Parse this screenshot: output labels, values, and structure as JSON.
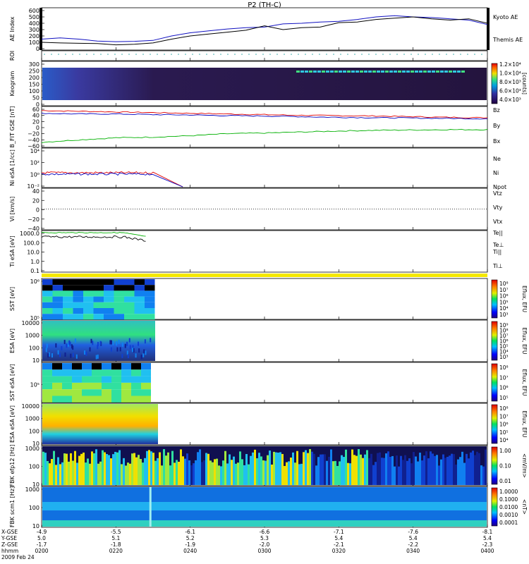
{
  "title": "P2 (TH-C)",
  "footer": {
    "rows": [
      {
        "label": "X-GSE",
        "values": [
          "-4.9",
          "-5.5",
          "-6.1",
          "-6.6",
          "-7.1",
          "-7.6",
          "-8.1"
        ]
      },
      {
        "label": "Y-GSE",
        "values": [
          "5.0",
          "5.1",
          "5.2",
          "5.3",
          "5.4",
          "5.4",
          "5.4"
        ]
      },
      {
        "label": "Z-GSE",
        "values": [
          "-1.7",
          "-1.8",
          "-1.9",
          "-2.0",
          "-2.1",
          "-2.2",
          "-2.3"
        ]
      },
      {
        "label": "hhmm",
        "values": [
          "0200",
          "0220",
          "0240",
          "0300",
          "0320",
          "0340",
          "0400"
        ]
      }
    ],
    "date": "2009 Feb 24"
  },
  "colors": {
    "kyoto": "#1010c0",
    "themis": "#000000",
    "bz": "#e00000",
    "by": "#00b000",
    "bx": "#0000c0",
    "roi": "#f5e800"
  },
  "chart_data": [
    {
      "type": "line",
      "name": "AE Index",
      "ylabel": "AE Index",
      "yticks": [
        "600",
        "500",
        "400",
        "300",
        "200",
        "100",
        "0"
      ],
      "ylim": [
        0,
        600
      ],
      "xlim_min": [
        0,
        120
      ],
      "series": [
        {
          "name": "Kyoto AE",
          "x": [
            0,
            5,
            10,
            15,
            20,
            25,
            30,
            35,
            40,
            45,
            50,
            55,
            60,
            65,
            70,
            75,
            80,
            85,
            90,
            95,
            100,
            105,
            110,
            115,
            120
          ],
          "values": [
            150,
            170,
            150,
            120,
            110,
            115,
            130,
            200,
            250,
            280,
            310,
            330,
            340,
            390,
            400,
            420,
            430,
            460,
            500,
            520,
            500,
            490,
            470,
            450,
            380
          ]
        },
        {
          "name": "Themis AE",
          "x": [
            0,
            5,
            10,
            15,
            20,
            25,
            30,
            35,
            40,
            45,
            50,
            55,
            60,
            65,
            70,
            75,
            80,
            85,
            90,
            95,
            100,
            105,
            110,
            115,
            120
          ],
          "values": [
            100,
            90,
            85,
            80,
            60,
            70,
            90,
            150,
            200,
            230,
            260,
            290,
            360,
            300,
            330,
            340,
            410,
            420,
            460,
            480,
            500,
            470,
            450,
            470,
            400
          ]
        }
      ]
    },
    {
      "type": "line",
      "name": "ROI",
      "ylabel": "ROI",
      "yticks": []
    },
    {
      "type": "heatmap",
      "name": "Keogram",
      "ylabel": "Keogram",
      "yticks": [
        "300",
        "250",
        "200",
        "150",
        "100",
        "50",
        "0"
      ],
      "colorbar": {
        "label": "[counts]",
        "ticks": [
          "1.2×10⁴",
          "1.0×10⁴",
          "8.0×10³",
          "6.0×10³",
          "4.0×10³"
        ]
      }
    },
    {
      "type": "line",
      "name": "B FIT GSE",
      "ylabel": "B_FIT GSE [nT]",
      "yticks": [
        "60",
        "40",
        "20",
        "0",
        "−20",
        "−40",
        "−60"
      ],
      "ylim": [
        -60,
        60
      ],
      "series": [
        {
          "name": "Bz",
          "x": [
            0,
            10,
            20,
            30,
            40,
            50,
            60,
            70,
            80,
            90,
            100,
            110,
            120
          ],
          "values": [
            48,
            46,
            44,
            42,
            40,
            38,
            36,
            34,
            33,
            32,
            30,
            28,
            27
          ]
        },
        {
          "name": "By",
          "x": [
            0,
            10,
            20,
            30,
            40,
            50,
            60,
            70,
            80,
            90,
            100,
            110,
            120
          ],
          "values": [
            -45,
            -38,
            -32,
            -30,
            -26,
            -20,
            -18,
            -15,
            -12,
            -10,
            -9,
            -8,
            -8
          ]
        },
        {
          "name": "Bx",
          "x": [
            0,
            10,
            20,
            30,
            40,
            50,
            60,
            70,
            80,
            90,
            100,
            110,
            120
          ],
          "values": [
            40,
            38,
            38,
            36,
            35,
            33,
            32,
            30,
            28,
            27,
            26,
            25,
            24
          ]
        }
      ]
    },
    {
      "type": "line",
      "name": "Ni",
      "ylabel": "Ni eSA [1/cc]",
      "yticks": [
        "10⁴",
        "10²",
        "10⁰",
        "10⁻²"
      ],
      "legend": [
        "Ne",
        "Ni",
        "Npot"
      ],
      "legend_colors": [
        "#e00000",
        "#000000",
        "#0000c0"
      ]
    },
    {
      "type": "line",
      "name": "Vi",
      "ylabel": "Vi [km/s]",
      "yticks": [
        "40",
        "20",
        "0",
        "−20",
        "−40"
      ],
      "legend": [
        "Vtz",
        "Vty",
        "Vtx"
      ],
      "legend_colors": [
        "#e00000",
        "#00b000",
        "#0000c0"
      ]
    },
    {
      "type": "line",
      "name": "Ti",
      "ylabel": "Ti eSA [eV]",
      "yticks": [
        "1000.0",
        "100.0",
        "10.0",
        "1.0",
        "0.1"
      ],
      "legend": [
        "Te||",
        "Te⊥",
        "Ti||",
        "Ti⊥"
      ],
      "legend_colors": [
        "#000000",
        "#e00000",
        "#00b000",
        "#0000c0"
      ]
    },
    {
      "type": "heatmap",
      "name": "SST1",
      "ylabel": "SST [eV]",
      "yticks": [
        "10⁶",
        "10⁵"
      ],
      "colorbar": {
        "label": "Eflux, EFU",
        "ticks": [
          "10⁸",
          "10⁷",
          "10⁶",
          "10⁵",
          "10⁴",
          "10³"
        ]
      }
    },
    {
      "type": "heatmap",
      "name": "ESA1",
      "ylabel": "ESA [eV]",
      "yticks": [
        "10000",
        "1000",
        "100",
        "10"
      ],
      "colorbar": {
        "label": "Eflux, EFU",
        "ticks": [
          "10⁹",
          "10⁸",
          "10⁷",
          "10⁶",
          "10⁵",
          "10⁴",
          "10³"
        ]
      }
    },
    {
      "type": "heatmap",
      "name": "SST2",
      "ylabel": "SST eSA [eV]",
      "yticks": [
        "10⁵"
      ],
      "colorbar": {
        "label": "Eflux, EFU",
        "ticks": [
          "10⁸",
          "10⁷",
          "10⁶",
          "10⁵"
        ]
      }
    },
    {
      "type": "heatmap",
      "name": "ESA2",
      "ylabel": "ESA eSA [eV]",
      "yticks": [
        "10000",
        "1000",
        "100",
        "10"
      ],
      "colorbar": {
        "label": "Eflux, EFU",
        "ticks": [
          "10⁸",
          "10⁷",
          "10⁶",
          "10⁵",
          "10⁴"
        ]
      }
    },
    {
      "type": "heatmap",
      "name": "FBK1",
      "ylabel": "FBK efp12 [Hz]",
      "yticks": [
        "1000",
        "100",
        "10"
      ],
      "colorbar": {
        "label": "<mV/m>",
        "ticks": [
          "1.00",
          "0.10",
          "0.01"
        ]
      }
    },
    {
      "type": "heatmap",
      "name": "FBK2",
      "ylabel": "FBK scm1 [Hz]",
      "yticks": [
        "1000",
        "100",
        "10"
      ],
      "colorbar": {
        "label": "<nT>",
        "ticks": [
          "1.0000",
          "0.1000",
          "0.0100",
          "0.0010",
          "0.0001"
        ]
      }
    }
  ]
}
